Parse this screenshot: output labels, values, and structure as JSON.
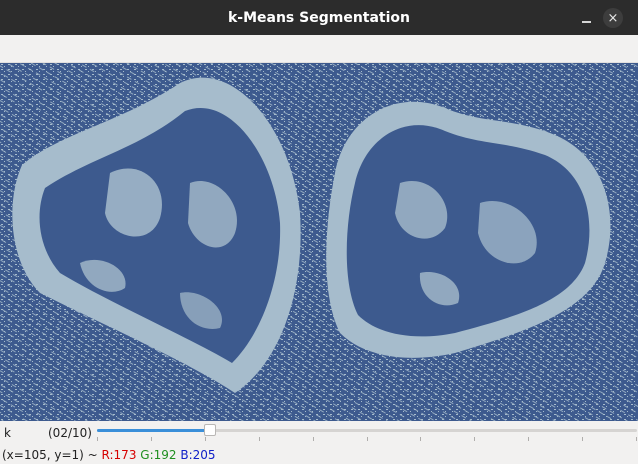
{
  "window": {
    "title": "k-Means Segmentation",
    "minimize_icon": "minimize-icon",
    "close_icon": "close-icon",
    "close_glyph": "×"
  },
  "colors": {
    "cluster_dark": "#3d5a8e",
    "cluster_light": "#a6bccc"
  },
  "trackbar": {
    "name": "k",
    "value_label": "(02/10)",
    "value": 2,
    "max": 10
  },
  "status": {
    "coords": "(x=105, y=1) ~ ",
    "r": "R:173",
    "g": "G:192",
    "b": "B:205",
    "r_color": "#d60000",
    "g_color": "#1f8f1f",
    "b_color": "#1020c8"
  }
}
